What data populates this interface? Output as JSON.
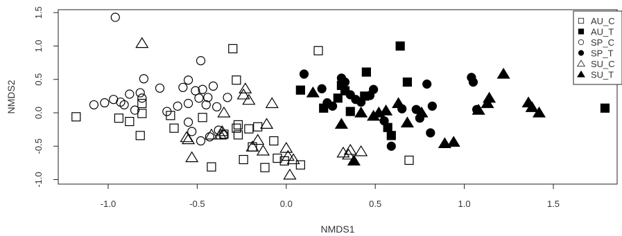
{
  "chart_data": {
    "type": "scatter",
    "title": "",
    "xlabel": "NMDS1",
    "ylabel": "NMDS2",
    "xlim": [
      -1.3,
      1.88
    ],
    "ylim": [
      -1.02,
      1.56
    ],
    "xticks": [
      -1.0,
      -0.5,
      0.0,
      0.5,
      1.0,
      1.5
    ],
    "xtick_labels": [
      "-1.0",
      "-0.5",
      "0.0",
      "0.5",
      "1.0",
      "1.5"
    ],
    "yticks": [
      -1.0,
      -0.5,
      0.0,
      0.5,
      1.0,
      1.5
    ],
    "ytick_labels": [
      "-1.0",
      "-0.5",
      "0.0",
      "0.5",
      "1.0",
      "1.5"
    ],
    "grid": false,
    "legend_position": "top-right",
    "series": [
      {
        "name": "AU_C",
        "legend_label": "AU_C",
        "marker": "square",
        "filled": false,
        "x": [
          -1.18,
          -0.94,
          -0.88,
          -0.82,
          -0.81,
          -0.81,
          -0.65,
          -0.63,
          -0.47,
          -0.42,
          -0.35,
          -0.3,
          -0.28,
          -0.28,
          -0.27,
          -0.27,
          -0.24,
          -0.21,
          -0.19,
          -0.16,
          -0.12,
          -0.07,
          -0.05,
          -0.01,
          0.08,
          0.18,
          0.69
        ],
        "y": [
          -0.06,
          -0.08,
          -0.13,
          -0.34,
          -0.01,
          0.14,
          -0.04,
          -0.23,
          -0.07,
          -0.81,
          -0.32,
          0.96,
          -0.23,
          0.49,
          -0.18,
          -0.33,
          -0.7,
          -0.24,
          -0.51,
          -0.21,
          -0.82,
          -0.42,
          -0.68,
          -0.72,
          -0.78,
          0.93,
          -0.71
        ]
      },
      {
        "name": "AU_T",
        "legend_label": "AU_T",
        "marker": "square",
        "filled": true,
        "x": [
          0.08,
          0.21,
          0.29,
          0.31,
          0.33,
          0.36,
          0.44,
          0.45,
          0.57,
          0.59,
          0.64,
          0.68,
          1.79
        ],
        "y": [
          0.34,
          0.07,
          0.22,
          0.41,
          0.33,
          0.02,
          0.25,
          0.61,
          -0.22,
          -0.34,
          1.0,
          0.46,
          0.07
        ]
      },
      {
        "name": "SP_C",
        "legend_label": "SP_C",
        "marker": "circle",
        "filled": false,
        "x": [
          -1.08,
          -1.02,
          -0.97,
          -0.93,
          -0.91,
          -0.88,
          -0.85,
          -0.82,
          -0.81,
          -0.8,
          -0.71,
          -0.67,
          -0.61,
          -0.58,
          -0.55,
          -0.55,
          -0.53,
          -0.51,
          -0.49,
          -0.48,
          -0.47,
          -0.45,
          -0.44,
          -0.43,
          -0.41,
          -0.39,
          -0.38,
          -0.35,
          -0.33,
          -0.96,
          -0.55,
          -0.48
        ],
        "y": [
          0.12,
          0.15,
          0.2,
          0.16,
          0.12,
          0.28,
          0.04,
          0.3,
          0.22,
          0.51,
          0.37,
          0.02,
          0.1,
          0.38,
          0.49,
          0.14,
          -0.28,
          0.33,
          0.22,
          -0.42,
          0.35,
          0.12,
          0.23,
          -0.36,
          0.4,
          0.09,
          -0.26,
          -0.33,
          0.23,
          1.43,
          -0.14,
          0.78
        ]
      },
      {
        "name": "SP_T",
        "legend_label": "SP_T",
        "marker": "circle",
        "filled": true,
        "x": [
          0.1,
          0.2,
          0.23,
          0.26,
          0.31,
          0.33,
          0.36,
          0.39,
          0.42,
          0.47,
          0.49,
          0.55,
          0.59,
          0.65,
          0.73,
          0.75,
          0.79,
          0.81,
          0.82,
          1.04,
          1.05,
          1.07
        ],
        "y": [
          0.58,
          0.36,
          0.15,
          0.1,
          0.52,
          0.46,
          0.27,
          0.2,
          0.16,
          0.26,
          0.35,
          -0.12,
          -0.5,
          0.06,
          0.05,
          -0.08,
          0.43,
          -0.3,
          0.1,
          0.53,
          0.46,
          0.05
        ]
      },
      {
        "name": "SU_C",
        "legend_label": "SU_C",
        "marker": "triangle",
        "filled": false,
        "x": [
          -0.81,
          -0.56,
          -0.55,
          -0.53,
          -0.42,
          -0.37,
          -0.36,
          -0.35,
          -0.24,
          -0.23,
          -0.21,
          -0.19,
          -0.16,
          -0.13,
          -0.11,
          -0.08,
          0.0,
          0.01,
          0.02,
          0.04,
          0.32,
          0.35,
          0.36,
          0.42
        ],
        "y": [
          1.04,
          -0.37,
          -0.4,
          -0.67,
          -0.33,
          -0.33,
          -0.28,
          0.0,
          0.27,
          0.36,
          0.19,
          -0.51,
          -0.41,
          -0.57,
          -0.17,
          0.14,
          -0.53,
          -0.65,
          -0.93,
          -0.7,
          -0.6,
          -0.63,
          -0.56,
          -0.58
        ]
      },
      {
        "name": "SU_T",
        "legend_label": "SU_T",
        "marker": "triangle",
        "filled": true,
        "x": [
          0.15,
          0.31,
          0.38,
          0.42,
          0.49,
          0.52,
          0.56,
          0.63,
          0.68,
          0.76,
          0.89,
          0.94,
          1.08,
          1.13,
          1.14,
          1.22,
          1.36,
          1.38,
          1.42
        ],
        "y": [
          0.3,
          -0.17,
          -0.72,
          0.0,
          -0.05,
          0.0,
          0.03,
          0.14,
          -0.15,
          0.0,
          -0.46,
          -0.44,
          0.04,
          0.14,
          0.22,
          0.58,
          0.15,
          0.08,
          0.0
        ]
      }
    ]
  }
}
